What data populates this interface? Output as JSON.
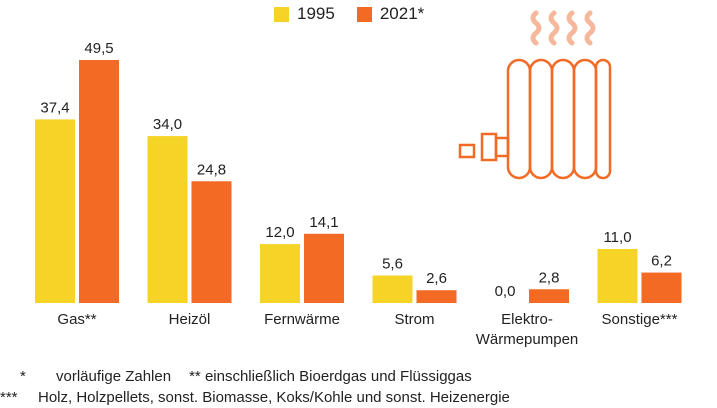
{
  "colors": {
    "series_1995": "#f5d327",
    "series_2021": "#f26a24",
    "icon": "#f26a24",
    "icon_heat": "#f6b79a"
  },
  "chart_data": {
    "type": "bar",
    "categories": [
      [
        "Gas**"
      ],
      [
        "Heizöl"
      ],
      [
        "Fernwärme"
      ],
      [
        "Strom"
      ],
      [
        "Elektro-",
        "Wärmepumpen"
      ],
      [
        "Sonstige***"
      ]
    ],
    "series": [
      {
        "name": "1995",
        "values": [
          37.4,
          34.0,
          12.0,
          5.6,
          0.0,
          11.0
        ],
        "labels": [
          "37,4",
          "34,0",
          "12,0",
          "5,6",
          "0,0",
          "11,0"
        ]
      },
      {
        "name": "2021*",
        "values": [
          49.5,
          24.8,
          14.1,
          2.6,
          2.8,
          6.2
        ],
        "labels": [
          "49,5",
          "24,8",
          "14,1",
          "2,6",
          "2,8",
          "6,2"
        ]
      }
    ],
    "ylim": [
      0,
      55
    ],
    "grid": false,
    "legend": "top-center"
  },
  "legend": {
    "items": [
      "1995",
      "2021*"
    ]
  },
  "footnotes": {
    "line1": {
      "mark_a": "*",
      "text_a": "vorläufige Zahlen",
      "mark_b": "**",
      "text_b": "einschließlich Bioerdgas und Flüssiggas"
    },
    "line2": {
      "mark": "***",
      "text": "Holz, Holzpellets, sonst. Biomasse, Koks/Kohle und sonst. Heizenergie"
    }
  },
  "icon": {
    "name": "radiator-icon"
  }
}
